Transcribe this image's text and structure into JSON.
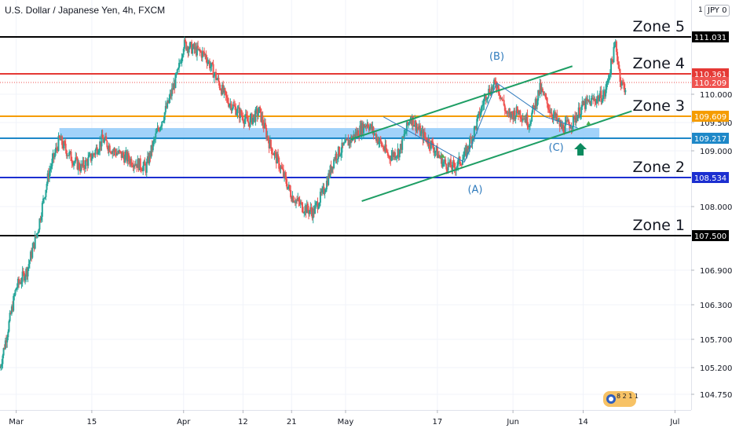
{
  "header": {
    "title": "U.S. Dollar / Japanese Yen, 4h, FXCM",
    "currency": "JPY",
    "currency_suffix": "0",
    "scale_mark": "1"
  },
  "colors": {
    "up": "#26a69a",
    "down": "#ef5350",
    "channel": "#1e9e64",
    "wave": "#2f7bbd",
    "band": "#90caf9",
    "arrow": "#0b8a5e"
  },
  "chart_data": {
    "type": "candlestick",
    "ylim": [
      104.5,
      111.5
    ],
    "y_ticks": [
      104.75,
      105.2,
      105.7,
      106.3,
      106.9,
      108.0,
      109.0,
      109.5,
      110.0
    ],
    "y_tick_labels": [
      "104.750",
      "105.200",
      "105.700",
      "106.300",
      "106.900",
      "108.000",
      "109.000",
      "109.500",
      "110.000"
    ],
    "x_ticks": [
      "Mar",
      "15",
      "Apr",
      "12",
      "21",
      "May",
      "17",
      "Jun",
      "14",
      "Jul"
    ],
    "x_tick_days": [
      0,
      14,
      31,
      42,
      51,
      61,
      78,
      92,
      105,
      122
    ],
    "x_range_days": [
      -3,
      125
    ],
    "close_path": [
      [
        -3,
        105.2
      ],
      [
        0,
        106.6
      ],
      [
        2,
        106.9
      ],
      [
        4,
        107.6
      ],
      [
        6,
        108.6
      ],
      [
        8,
        109.2
      ],
      [
        10,
        108.9
      ],
      [
        12,
        108.7
      ],
      [
        14,
        108.9
      ],
      [
        16,
        109.2
      ],
      [
        18,
        109.0
      ],
      [
        20,
        108.9
      ],
      [
        22,
        108.8
      ],
      [
        24,
        108.7
      ],
      [
        26,
        109.3
      ],
      [
        28,
        109.8
      ],
      [
        30,
        110.4
      ],
      [
        31,
        110.9
      ],
      [
        33,
        110.8
      ],
      [
        35,
        110.7
      ],
      [
        37,
        110.3
      ],
      [
        39,
        109.9
      ],
      [
        41,
        109.7
      ],
      [
        43,
        109.5
      ],
      [
        45,
        109.7
      ],
      [
        47,
        109.1
      ],
      [
        49,
        108.7
      ],
      [
        51,
        108.2
      ],
      [
        53,
        108.0
      ],
      [
        55,
        107.9
      ],
      [
        57,
        108.3
      ],
      [
        59,
        108.9
      ],
      [
        61,
        109.1
      ],
      [
        63,
        109.3
      ],
      [
        65,
        109.5
      ],
      [
        67,
        109.2
      ],
      [
        69,
        108.9
      ],
      [
        71,
        109.0
      ],
      [
        73,
        109.6
      ],
      [
        75,
        109.3
      ],
      [
        77,
        109.1
      ],
      [
        79,
        108.8
      ],
      [
        81,
        108.7
      ],
      [
        83,
        108.9
      ],
      [
        85,
        109.4
      ],
      [
        87,
        110.0
      ],
      [
        89,
        110.2
      ],
      [
        91,
        109.6
      ],
      [
        93,
        109.7
      ],
      [
        95,
        109.5
      ],
      [
        97,
        110.1
      ],
      [
        99,
        109.7
      ],
      [
        101,
        109.4
      ],
      [
        103,
        109.5
      ],
      [
        105,
        109.8
      ],
      [
        107,
        109.9
      ],
      [
        109,
        110.0
      ],
      [
        111,
        110.9
      ],
      [
        112,
        110.2
      ],
      [
        113,
        110.1
      ]
    ],
    "levels": [
      {
        "name": "Zone 5",
        "value": 111.031,
        "label": "111.031",
        "color": "#000000"
      },
      {
        "name": "Zone 4",
        "value": 110.361,
        "label": "110.361",
        "color": "#e53935"
      },
      {
        "name": "",
        "value": 110.209,
        "label": "110.209",
        "color": "#ef5350",
        "dotted": true
      },
      {
        "name": "Zone 3",
        "value": 109.609,
        "label": "109.609",
        "color": "#f59c00"
      },
      {
        "name": "",
        "value": 109.217,
        "label": "109.217",
        "color": "#1e88c8"
      },
      {
        "name": "Zone 2",
        "value": 108.534,
        "label": "108.534",
        "color": "#1c2fd0"
      },
      {
        "name": "Zone 1",
        "value": 107.5,
        "label": "107.500",
        "color": "#000000"
      }
    ],
    "annotations": {
      "band": {
        "x_days": [
          8,
          108
        ],
        "y_range": [
          109.2,
          109.4
        ]
      },
      "channel_upper": [
        [
          62,
          109.2
        ],
        [
          103,
          110.5
        ]
      ],
      "channel_lower": [
        [
          64,
          108.1
        ],
        [
          114,
          109.7
        ]
      ],
      "wave_lines": [
        [
          [
            68,
            109.6
          ],
          [
            83,
            108.8
          ]
        ],
        [
          [
            83,
            108.8
          ],
          [
            89,
            110.2
          ]
        ],
        [
          [
            89,
            110.2
          ],
          [
            98,
            109.6
          ]
        ],
        [
          [
            98,
            109.6
          ],
          [
            104,
            109.4
          ]
        ]
      ],
      "wave_labels": [
        {
          "text": "(A)",
          "x": 85,
          "y": 108.25
        },
        {
          "text": "(B)",
          "x": 89,
          "y": 110.62
        },
        {
          "text": "(C)",
          "x": 100,
          "y": 109.0
        }
      ],
      "arrow": {
        "x": 104.5,
        "y": 109.0
      }
    }
  }
}
